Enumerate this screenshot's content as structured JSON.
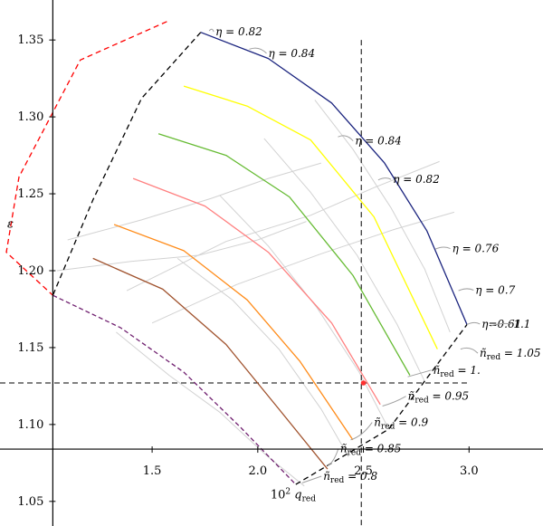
{
  "chart_data": {
    "type": "line",
    "title": "",
    "xlabel": "10² q_red",
    "ylabel": "ε",
    "xlim": [
      0.78,
      3.35
    ],
    "ylim": [
      1.034,
      1.376
    ],
    "x_ticks": [
      "1.5",
      "2.0",
      "2.5",
      "3.0"
    ],
    "y_ticks": [
      "1.05",
      "1.10",
      "1.15",
      "1.20",
      "1.25",
      "1.30",
      "1.35"
    ],
    "colors": {
      "yellow": "#ffff00",
      "green": "#66bb33",
      "salmon": "#ff8080",
      "orange": "#ff8c1a",
      "brown": "#a0522d",
      "purple": "#702070",
      "navy": "#1a237e",
      "red_dashed": "#ff0000",
      "marker": "#ff3030",
      "grid": "#d2d2d2",
      "annotation_line": "#a0a0a0"
    },
    "series": [
      {
        "color": "yellow",
        "x": [
          1.65,
          1.95,
          2.25,
          2.55,
          2.85
        ],
        "y": [
          1.32,
          1.307,
          1.285,
          1.235,
          1.149
        ]
      },
      {
        "color": "green",
        "x": [
          1.53,
          1.85,
          2.15,
          2.45,
          2.72
        ],
        "y": [
          1.289,
          1.275,
          1.248,
          1.197,
          1.132
        ]
      },
      {
        "color": "salmon",
        "x": [
          1.41,
          1.75,
          2.05,
          2.35,
          2.58
        ],
        "y": [
          1.26,
          1.242,
          1.212,
          1.166,
          1.113
        ]
      },
      {
        "color": "orange",
        "x": [
          1.32,
          1.65,
          1.95,
          2.2,
          2.45
        ],
        "y": [
          1.23,
          1.213,
          1.181,
          1.141,
          1.09
        ]
      },
      {
        "color": "brown",
        "x": [
          1.22,
          1.55,
          1.85,
          2.1,
          2.33
        ],
        "y": [
          1.208,
          1.188,
          1.152,
          1.11,
          1.071
        ]
      },
      {
        "color": "purple",
        "dash": "5,3",
        "x": [
          1.03,
          1.35,
          1.65,
          1.92,
          2.18
        ],
        "y": [
          1.184,
          1.163,
          1.134,
          1.098,
          1.061
        ]
      },
      {
        "color": "navy",
        "x": [
          1.73,
          2.05,
          2.35,
          2.6,
          2.8,
          2.99
        ],
        "y": [
          1.355,
          1.338,
          1.309,
          1.27,
          1.226,
          1.165
        ]
      },
      {
        "color": "red_dashed",
        "dash": "6,4",
        "x": [
          1.57,
          1.16,
          0.87,
          0.81,
          1.03
        ],
        "y": [
          1.362,
          1.337,
          1.261,
          1.212,
          1.184
        ]
      },
      {
        "color": "black",
        "dash": "6,4",
        "x": [
          1.73,
          1.45,
          1.22,
          1.03
        ],
        "y": [
          1.355,
          1.312,
          1.246,
          1.184
        ]
      },
      {
        "color": "black",
        "dash": "6,4",
        "x": [
          2.18,
          2.62,
          2.99
        ],
        "y": [
          1.061,
          1.097,
          1.165
        ]
      }
    ],
    "grid_lines": [
      {
        "x": [
          1.33,
          1.58,
          1.82,
          2.04,
          2.22
        ],
        "y": [
          1.16,
          1.132,
          1.108,
          1.08,
          1.06
        ]
      },
      {
        "x": [
          1.62,
          1.88,
          2.1,
          2.3,
          2.43
        ],
        "y": [
          1.208,
          1.181,
          1.149,
          1.11,
          1.079
        ]
      },
      {
        "x": [
          1.82,
          2.05,
          2.28,
          2.48,
          2.62
        ],
        "y": [
          1.249,
          1.216,
          1.176,
          1.134,
          1.097
        ]
      },
      {
        "x": [
          2.03,
          2.25,
          2.47,
          2.66,
          2.79
        ],
        "y": [
          1.286,
          1.251,
          1.21,
          1.165,
          1.128
        ]
      },
      {
        "x": [
          2.27,
          2.45,
          2.63,
          2.79,
          2.91
        ],
        "y": [
          1.311,
          1.279,
          1.241,
          1.201,
          1.16
        ]
      },
      {
        "x": [
          1.05,
          1.4,
          1.72,
          2.0,
          2.23
        ],
        "y": [
          1.2,
          1.206,
          1.21,
          1.22,
          1.232
        ]
      },
      {
        "x": [
          1.1,
          1.45,
          1.78,
          2.05,
          2.3
        ],
        "y": [
          1.22,
          1.233,
          1.247,
          1.26,
          1.27
        ]
      },
      {
        "x": [
          1.38,
          1.85,
          2.25,
          2.55,
          2.86
        ],
        "y": [
          1.187,
          1.219,
          1.236,
          1.254,
          1.271
        ]
      },
      {
        "x": [
          1.5,
          1.9,
          2.3,
          2.65,
          2.93
        ],
        "y": [
          1.166,
          1.191,
          1.211,
          1.227,
          1.238
        ]
      }
    ],
    "reference_lines": {
      "vertical_x": 2.49,
      "horizontal_y": 1.127
    },
    "marker": {
      "x": 2.5,
      "y": 1.127
    },
    "annotations": [
      {
        "text": "η = 0.82",
        "x": 1.8,
        "y": 1.353,
        "pointer": [
          1.77,
          1.356
        ]
      },
      {
        "text": "η = 0.84",
        "x": 2.05,
        "y": 1.339,
        "pointer": [
          1.96,
          1.344
        ]
      },
      {
        "text": "η = 0.84",
        "x": 2.46,
        "y": 1.282,
        "pointer": [
          2.38,
          1.287
        ]
      },
      {
        "text": "η = 0.82",
        "x": 2.64,
        "y": 1.257,
        "pointer": [
          2.57,
          1.259
        ]
      },
      {
        "text": "η = 0.76",
        "x": 2.92,
        "y": 1.212,
        "pointer": [
          2.84,
          1.214
        ]
      },
      {
        "text": "η = 0.7",
        "x": 3.03,
        "y": 1.185,
        "pointer": [
          2.95,
          1.187
        ]
      },
      {
        "text": "η=0.61",
        "x": 3.06,
        "y": 1.163,
        "pointer": [
          2.99,
          1.165
        ]
      },
      {
        "text": "1.1",
        "x": 3.21,
        "y": 1.163,
        "pointer": [
          3.1,
          1.164
        ]
      },
      {
        "text": "ñ_red = 1.05",
        "x": 3.05,
        "y": 1.144,
        "pointer": [
          2.96,
          1.149
        ]
      },
      {
        "text": "ñ_red = 1.",
        "x": 2.83,
        "y": 1.133,
        "pointer": [
          2.71,
          1.131
        ]
      },
      {
        "text": "ñ_red = 0.95",
        "x": 2.71,
        "y": 1.116,
        "pointer": [
          2.59,
          1.112
        ]
      },
      {
        "text": "ñ_red = 0.9",
        "x": 2.55,
        "y": 1.099,
        "pointer": [
          2.44,
          1.09
        ]
      },
      {
        "text": "ñ_red = 0.85",
        "x": 2.39,
        "y": 1.082,
        "pointer": [
          2.33,
          1.073
        ]
      },
      {
        "text": "ñ_red = 0.8",
        "x": 2.31,
        "y": 1.064,
        "pointer": [
          2.21,
          1.062
        ]
      }
    ]
  }
}
